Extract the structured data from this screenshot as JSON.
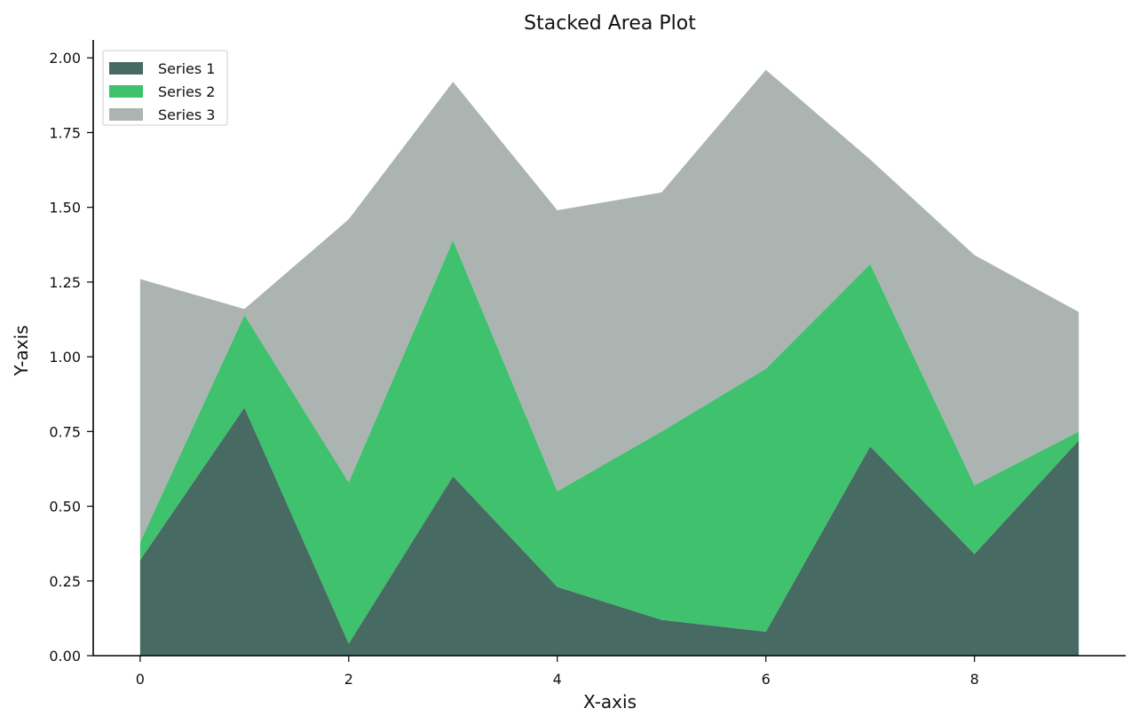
{
  "chart_data": {
    "type": "area",
    "stacked": true,
    "title": "Stacked Area Plot",
    "xlabel": "X-axis",
    "ylabel": "Y-axis",
    "x": [
      0,
      1,
      2,
      3,
      4,
      5,
      6,
      7,
      8,
      9
    ],
    "xlim": [
      -0.45,
      9.45
    ],
    "ylim": [
      0,
      2.06
    ],
    "xticks": [
      0,
      2,
      4,
      6,
      8
    ],
    "xtick_labels": [
      "0",
      "2",
      "4",
      "6",
      "8"
    ],
    "yticks": [
      0,
      0.25,
      0.5,
      0.75,
      1.0,
      1.25,
      1.5,
      1.75,
      2.0
    ],
    "ytick_labels": [
      "0.00",
      "0.25",
      "0.50",
      "0.75",
      "1.00",
      "1.25",
      "1.50",
      "1.75",
      "2.00"
    ],
    "grid": false,
    "legend_position": "top-left",
    "series": [
      {
        "name": "Series 1",
        "color": "#476a62",
        "values": [
          0.32,
          0.83,
          0.04,
          0.6,
          0.23,
          0.12,
          0.08,
          0.7,
          0.34,
          0.72
        ]
      },
      {
        "name": "Series 2",
        "color": "#3fc16e",
        "values": [
          0.06,
          0.31,
          0.54,
          0.79,
          0.32,
          0.63,
          0.88,
          0.61,
          0.23,
          0.03
        ]
      },
      {
        "name": "Series 3",
        "color": "#acb4b1",
        "values": [
          0.88,
          0.02,
          0.88,
          0.53,
          0.94,
          0.8,
          1.0,
          0.35,
          0.77,
          0.4
        ]
      }
    ]
  }
}
